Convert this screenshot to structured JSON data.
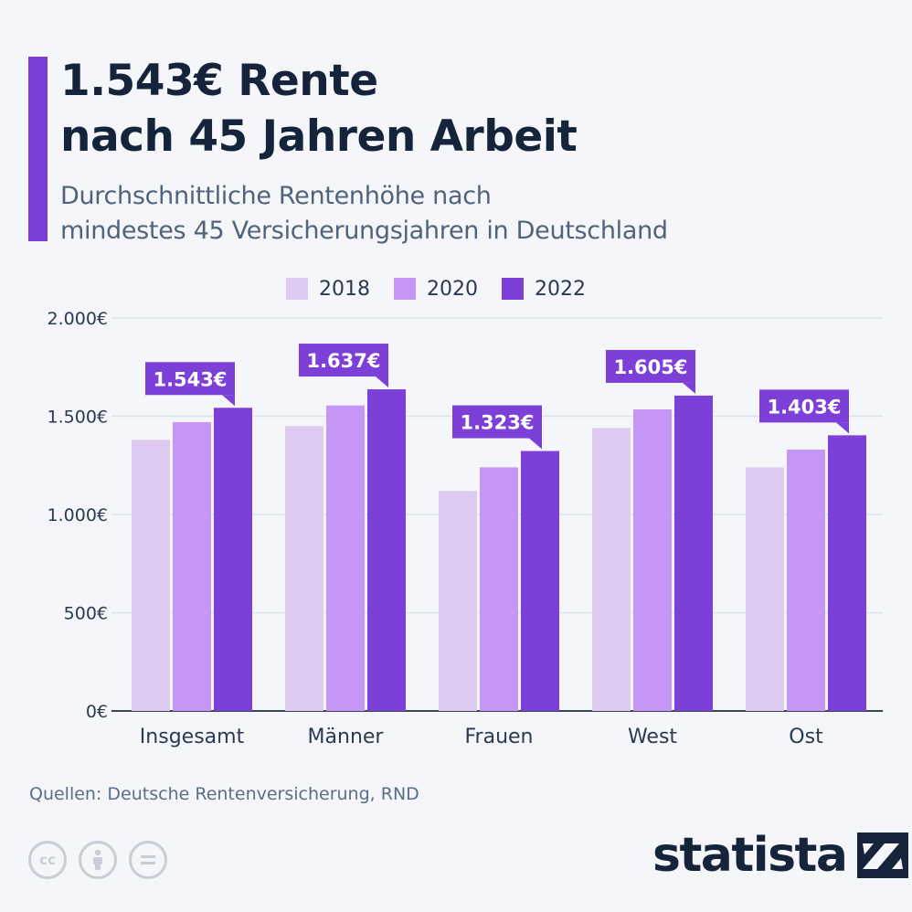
{
  "header": {
    "title_line1": "1.543€ Rente",
    "title_line2": "nach 45 Jahren Arbeit",
    "subtitle_line1": "Durchschnittliche Rentenhöhe nach",
    "subtitle_line2": "mindestes 45 Versicherungsjahren in Deutschland"
  },
  "colors": {
    "accent": "#7b3fd6",
    "y2018": "#dfcaf1",
    "y2020": "#c596f5",
    "y2022": "#7c3fd8",
    "grid": "#dde2ea",
    "label_bg": "#7c3fd8"
  },
  "chart_data": {
    "type": "bar",
    "categories": [
      "Insgesamt",
      "Männer",
      "Frauen",
      "West",
      "Ost"
    ],
    "series": [
      {
        "name": "2018",
        "values": [
          1380,
          1450,
          1120,
          1440,
          1240
        ]
      },
      {
        "name": "2020",
        "values": [
          1470,
          1555,
          1240,
          1535,
          1330
        ]
      },
      {
        "name": "2022",
        "values": [
          1543,
          1637,
          1323,
          1605,
          1403
        ]
      }
    ],
    "data_labels": [
      "1.543€",
      "1.637€",
      "1.323€",
      "1.605€",
      "1.403€"
    ],
    "y_ticks": [
      {
        "value": 0,
        "label": "0€"
      },
      {
        "value": 500,
        "label": "500€"
      },
      {
        "value": 1000,
        "label": "1.000€"
      },
      {
        "value": 1500,
        "label": "1.500€"
      },
      {
        "value": 2000,
        "label": "2.000€"
      }
    ],
    "ylim": [
      0,
      2000
    ],
    "grid": true,
    "legend_position": "top-center"
  },
  "footer": {
    "source": "Quellen: Deutsche Rentenversicherung, RND",
    "icons": [
      "cc-icon",
      "by-icon",
      "nd-icon"
    ],
    "brand": "statista"
  }
}
